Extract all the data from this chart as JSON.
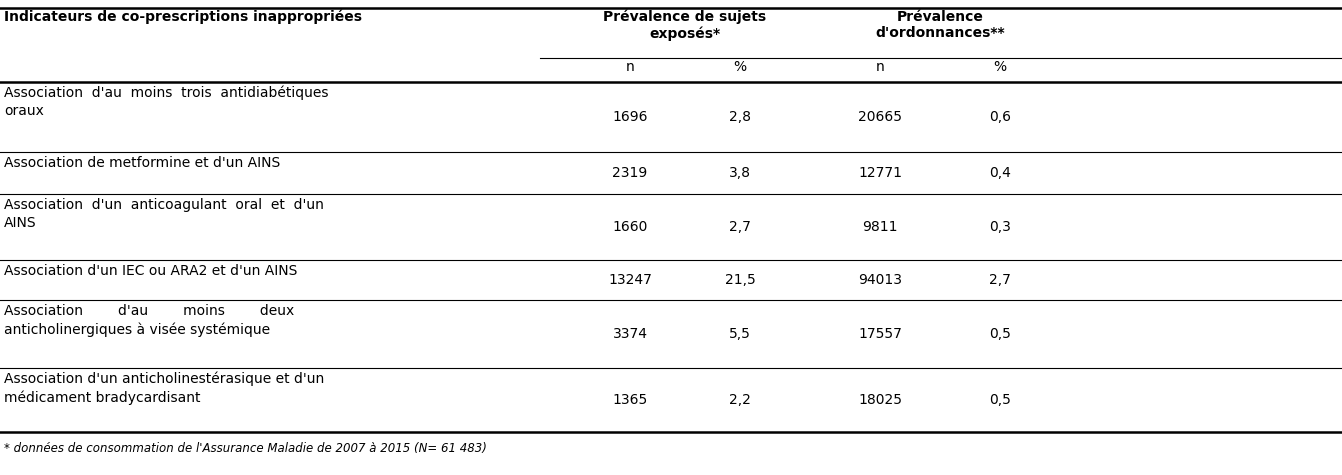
{
  "col1_header": "Indicateurs de co-prescriptions inappropriées",
  "group1_header": "Prévalence de sujets\nexposés*",
  "group2_header": "Prévalence\nd'ordonnances**",
  "subheaders": [
    "n",
    "%",
    "n",
    "%"
  ],
  "rows": [
    {
      "label": "Association  d'au  moins  trois  antidiabétiques\noraux",
      "n1": "1696",
      "pct1": "2,8",
      "n2": "20665",
      "pct2": "0,6",
      "two_line": true
    },
    {
      "label": "Association de metformine et d'un AINS",
      "n1": "2319",
      "pct1": "3,8",
      "n2": "12771",
      "pct2": "0,4",
      "two_line": false
    },
    {
      "label": "Association  d'un  anticoagulant  oral  et  d'un\nAINS",
      "n1": "1660",
      "pct1": "2,7",
      "n2": "9811",
      "pct2": "0,3",
      "two_line": true
    },
    {
      "label": "Association d'un IEC ou ARA2 et d'un AINS",
      "n1": "13247",
      "pct1": "21,5",
      "n2": "94013",
      "pct2": "2,7",
      "two_line": false
    },
    {
      "label": "Association        d'au        moins        deux\nanticholinergiques à visée systémique",
      "n1": "3374",
      "pct1": "5,5",
      "n2": "17557",
      "pct2": "0,5",
      "two_line": true
    },
    {
      "label": "Association d'un anticholinestérasique et d'un\nmédicament bradycardisant",
      "n1": "1365",
      "pct1": "2,2",
      "n2": "18025",
      "pct2": "0,5",
      "two_line": true
    }
  ],
  "footnote": "* données de consommation de l'Assurance Maladie de 2007 à 2015 (N= 61 483)",
  "bg_color": "#ffffff",
  "text_color": "#000000",
  "header_fontsize": 10,
  "body_fontsize": 10,
  "footnote_fontsize": 8.5
}
